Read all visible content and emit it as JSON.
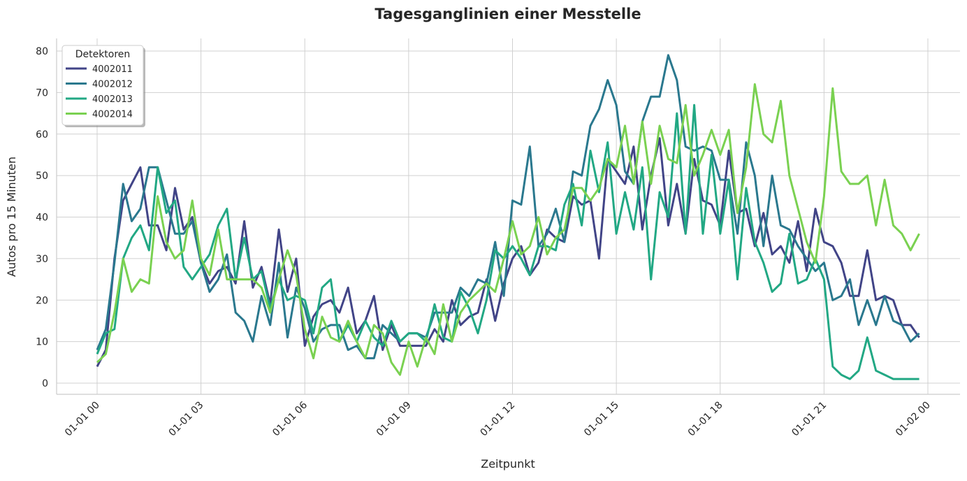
{
  "chart_data": {
    "type": "line",
    "title": "Tagesganglinien einer Messtelle",
    "xlabel": "Zeitpunkt",
    "ylabel": "Autos pro 15 Minuten",
    "x_start": "2000-01-01 00:00",
    "x_interval_minutes": 15,
    "xticks": [
      "01-01 00",
      "01-01 03",
      "01-01 06",
      "01-01 09",
      "01-01 12",
      "01-01 15",
      "01-01 18",
      "01-01 21",
      "01-02 00"
    ],
    "yticks": [
      0,
      10,
      20,
      30,
      40,
      50,
      60,
      70,
      80
    ],
    "ylim": [
      -2.7,
      83
    ],
    "grid": true,
    "legend": {
      "title": "Detektoren",
      "placement": "top-left"
    },
    "series": [
      {
        "name": "4002011",
        "color": "#414487",
        "values": [
          4,
          8,
          30,
          44,
          48,
          52,
          38,
          38,
          32,
          47,
          37,
          40,
          29,
          24,
          27,
          28,
          24,
          39,
          23,
          28,
          19,
          37,
          22,
          30,
          9,
          16,
          19,
          20,
          17,
          23,
          12,
          15,
          21,
          8,
          14,
          9,
          9,
          9,
          9,
          13,
          10,
          20,
          14,
          16,
          17,
          25,
          15,
          24,
          30,
          33,
          26,
          29,
          37,
          35,
          34,
          45,
          43,
          44,
          30,
          54,
          51,
          48,
          57,
          37,
          50,
          59,
          38,
          48,
          36,
          54,
          44,
          43,
          38,
          56,
          41,
          42,
          33,
          41,
          31,
          33,
          29,
          39,
          27,
          42,
          34,
          33,
          29,
          21,
          21,
          32,
          20,
          21,
          20,
          14,
          14,
          11
        ]
      },
      {
        "name": "4002012",
        "color": "#2a788e",
        "values": [
          8,
          13,
          29,
          48,
          39,
          42,
          52,
          52,
          44,
          36,
          36,
          39,
          29,
          22,
          25,
          31,
          17,
          15,
          10,
          21,
          14,
          29,
          11,
          23,
          18,
          10,
          13,
          14,
          14,
          8,
          9,
          6,
          6,
          14,
          12,
          10,
          12,
          12,
          11,
          17,
          17,
          17,
          23,
          21,
          25,
          24,
          34,
          21,
          44,
          43,
          57,
          33,
          36,
          42,
          34,
          51,
          50,
          62,
          66,
          73,
          67,
          51,
          48,
          63,
          69,
          69,
          79,
          73,
          57,
          56,
          57,
          56,
          49,
          49,
          36,
          58,
          50,
          33,
          50,
          38,
          37,
          33,
          30,
          27,
          29,
          20,
          21,
          25,
          14,
          20,
          14,
          21,
          15,
          14,
          10,
          12
        ]
      },
      {
        "name": "4002013",
        "color": "#22a884",
        "values": [
          7,
          12,
          13,
          30,
          35,
          38,
          32,
          52,
          41,
          44,
          28,
          25,
          28,
          31,
          38,
          42,
          25,
          35,
          25,
          27,
          18,
          25,
          20,
          21,
          20,
          12,
          23,
          25,
          10,
          14,
          10,
          15,
          11,
          9,
          15,
          10,
          12,
          12,
          10,
          19,
          11,
          10,
          22,
          18,
          12,
          20,
          32,
          30,
          33,
          30,
          26,
          33,
          33,
          32,
          43,
          48,
          38,
          56,
          46,
          58,
          36,
          46,
          37,
          52,
          25,
          46,
          40,
          65,
          36,
          67,
          36,
          55,
          36,
          49,
          25,
          47,
          34,
          29,
          22,
          24,
          36,
          24,
          25,
          30,
          25,
          4,
          2,
          1,
          3,
          11,
          3,
          2,
          1,
          1,
          1,
          1
        ]
      },
      {
        "name": "4002014",
        "color": "#7ad151",
        "values": [
          5,
          7,
          17,
          30,
          22,
          25,
          24,
          45,
          34,
          30,
          32,
          44,
          30,
          26,
          37,
          25,
          25,
          25,
          25,
          23,
          17,
          25,
          32,
          26,
          13,
          6,
          16,
          11,
          10,
          15,
          10,
          6,
          14,
          12,
          5,
          2,
          10,
          4,
          11,
          7,
          19,
          10,
          17,
          20,
          22,
          24,
          22,
          30,
          39,
          31,
          33,
          40,
          31,
          35,
          37,
          47,
          47,
          44,
          47,
          54,
          52,
          62,
          48,
          63,
          48,
          62,
          54,
          53,
          67,
          50,
          55,
          61,
          55,
          61,
          41,
          52,
          72,
          60,
          58,
          68,
          50,
          42,
          34,
          29,
          45,
          71,
          51,
          48,
          48,
          50,
          38,
          49,
          38,
          36,
          32,
          36
        ]
      }
    ]
  }
}
